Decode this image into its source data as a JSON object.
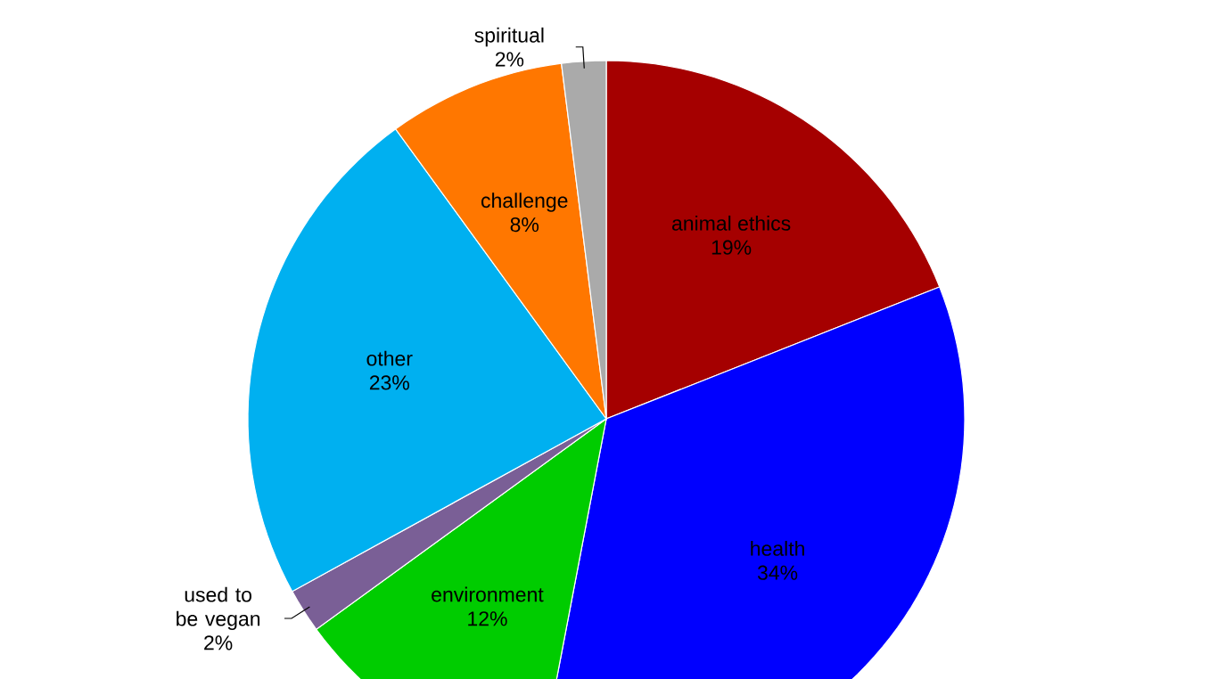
{
  "chart_data": {
    "type": "pie",
    "categories": [
      "animal ethics",
      "health",
      "environment",
      "used to be vegan",
      "other",
      "challenge",
      "spiritual"
    ],
    "values": [
      19,
      34,
      12,
      2,
      23,
      8,
      2
    ],
    "colors": [
      "#a50000",
      "#0000ff",
      "#00cc00",
      "#7a5f96",
      "#00b0f0",
      "#ff7700",
      "#aaaaaa"
    ],
    "value_labels": [
      "19%",
      "34%",
      "12%",
      "2%",
      "23%",
      "8%",
      "2%"
    ]
  }
}
